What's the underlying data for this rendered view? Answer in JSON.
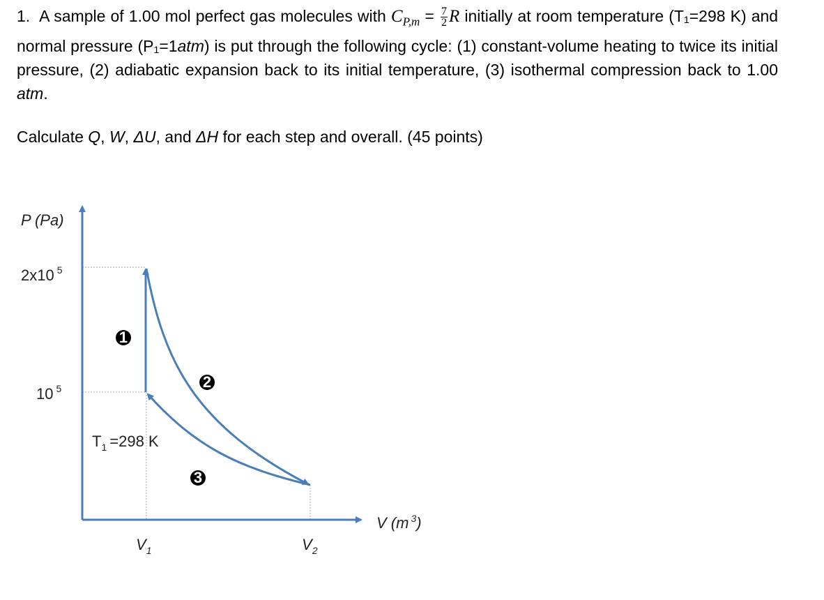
{
  "problem": {
    "number": "1.",
    "intro": "A sample of 1.00 mol perfect gas molecules with",
    "cp_symbol": "C",
    "cp_subscript": "P,m",
    "equals": "=",
    "frac_num": "7",
    "frac_den": "2",
    "r_symbol": "R",
    "body_1": "initially at room temperature (T₁=298 K) and normal pressure (P₁=1",
    "atm_1": "atm",
    "body_2": ") is put through the following cycle: (1) constant-volume heating to twice its initial pressure, (2) adiabatic expansion back to its initial temperature, (3) isothermal compression back to 1.00",
    "atm_2": "atm",
    "body_3": "."
  },
  "task": {
    "calc": "Calculate",
    "q": "Q",
    "sep_1": ",",
    "w": "W",
    "sep_2": ",",
    "du": "ΔU",
    "sep_3": ", and",
    "dh": "ΔH",
    "rest": "for each step and overall.  (45 points)"
  },
  "diagram": {
    "y_axis_label": "P (Pa)",
    "p_high": "2x10",
    "p_high_exp": "5",
    "p_low": "10",
    "p_low_exp": "5",
    "t_label": "T",
    "t_sub": "1",
    "t_value": "=298 K",
    "v1": "V",
    "v1_sub": "1",
    "v2": "V",
    "v2_sub": "2",
    "x_axis_label": "V (m",
    "x_axis_exp": "3",
    "x_axis_close": ")",
    "steps": [
      "1",
      "2",
      "3"
    ]
  }
}
